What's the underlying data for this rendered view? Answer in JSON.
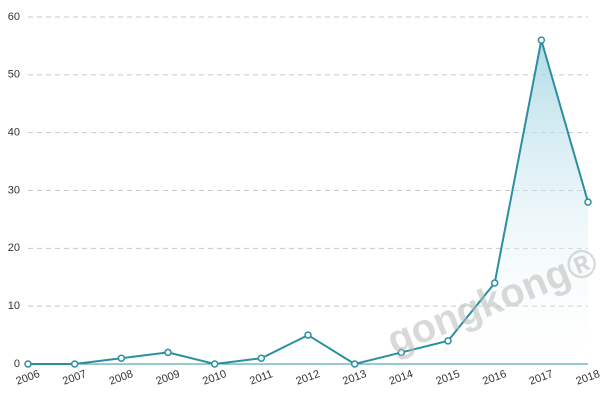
{
  "chart_data": {
    "type": "line",
    "categories": [
      "2006",
      "2007",
      "2008",
      "2009",
      "2010",
      "2011",
      "2012",
      "2013",
      "2014",
      "2015",
      "2016",
      "2017",
      "2018"
    ],
    "values": [
      0,
      0,
      1,
      2,
      0,
      1,
      5,
      0,
      2,
      4,
      14,
      56,
      28
    ],
    "color": "#2a8f9e",
    "area": true,
    "ylim": [
      0,
      60
    ],
    "yticks": [
      0,
      10,
      20,
      30,
      40,
      50,
      60
    ],
    "grid": true,
    "watermark": "gongkong®"
  }
}
